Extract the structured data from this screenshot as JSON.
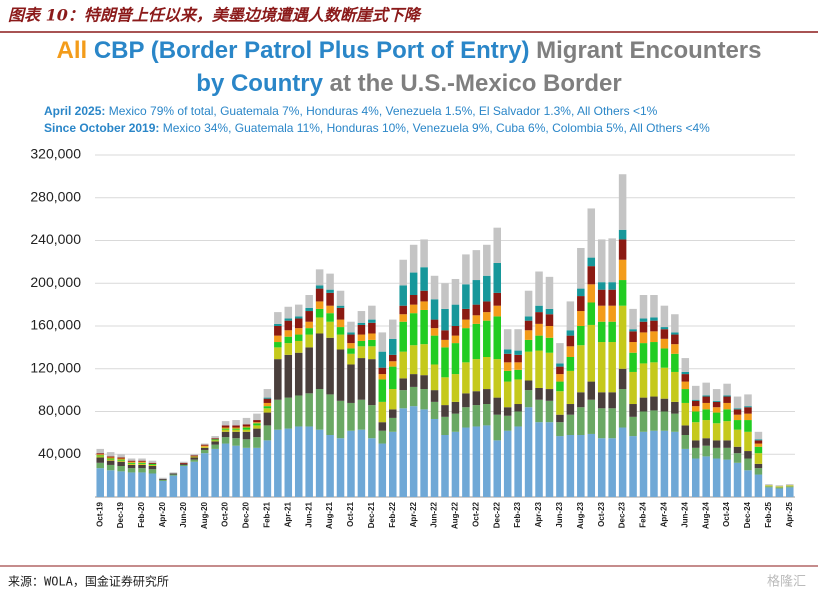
{
  "header": {
    "title": "图表 10：特朗普上任以来，美墨边境遭遇人数断崖式下降"
  },
  "chart_data": {
    "type": "stacked-bar",
    "title_line1": [
      "All",
      "CBP (Border Patrol Plus Port of Entry)",
      "Migrant Encounters"
    ],
    "title_line2": [
      "by Country",
      "at the U.S.-Mexico Border"
    ],
    "title_colors": [
      "#f39c1a",
      "#2a86c8",
      "#7f7f7f"
    ],
    "notes": [
      {
        "label": "April 2025:",
        "text": "Mexico 79% of total, Guatemala 7%, Honduras 4%, Venezuela 1.5%, El Salvador 1.3%, All Others <1%"
      },
      {
        "label": "Since October 2019:",
        "text": "Mexico 34%, Guatemala 11%, Honduras 10%, Venezuela 9%, Cuba 6%, Colombia 5%, All Others <4%"
      }
    ],
    "categories": [
      "Oct-19",
      null,
      "Dec-19",
      null,
      "Feb-20",
      null,
      "Apr-20",
      null,
      "Jun-20",
      null,
      "Aug-20",
      null,
      "Oct-20",
      null,
      "Dec-20",
      null,
      "Feb-21",
      null,
      "Apr-21",
      null,
      "Jun-21",
      null,
      "Aug-21",
      null,
      "Oct-21",
      null,
      "Dec-21",
      null,
      "Feb-22",
      null,
      "Apr-22",
      null,
      "Jun-22",
      null,
      "Aug-22",
      null,
      "Oct-22",
      null,
      "Dec-22",
      null,
      "Feb-23",
      null,
      "Apr-23",
      null,
      "Jun-23",
      null,
      "Aug-23",
      null,
      "Oct-23",
      null,
      "Dec-23",
      null,
      "Feb-24",
      null,
      "Apr-24",
      null,
      "Jun-24",
      null,
      "Aug-24",
      null,
      "Oct-24",
      null,
      "Dec-24",
      null,
      "Feb-25",
      null,
      "Apr-25"
    ],
    "series": [
      {
        "color": "#6fa8d6",
        "values": [
          27000,
          25000,
          24000,
          23000,
          23000,
          22000,
          15000,
          20000,
          29000,
          33000,
          41000,
          45000,
          50000,
          48000,
          46000,
          46000,
          53000,
          63000,
          64000,
          66000,
          66000,
          63000,
          58000,
          55000,
          62000,
          63000,
          55000,
          50000,
          61000,
          83000,
          85000,
          82000,
          73000,
          58000,
          61000,
          65000,
          66000,
          67000,
          53000,
          62000,
          66000,
          84000,
          70000,
          70000,
          57000,
          58000,
          58000,
          59000,
          55000,
          55000,
          65000,
          57000,
          61000,
          62000,
          62000,
          61000,
          45000,
          36000,
          38000,
          36000,
          35000,
          32000,
          25000,
          21000,
          9000,
          8000,
          9000
        ]
      },
      {
        "color": "#6aa864",
        "values": [
          5000,
          5000,
          5000,
          4000,
          4000,
          4000,
          1000,
          1000,
          1000,
          2000,
          3000,
          4000,
          6000,
          7000,
          8000,
          10000,
          14000,
          28000,
          29000,
          29000,
          31000,
          38000,
          38000,
          35000,
          26000,
          28000,
          31000,
          12000,
          13000,
          17000,
          18000,
          19000,
          16000,
          17000,
          17000,
          19000,
          20000,
          20000,
          24000,
          14000,
          14000,
          16000,
          21000,
          20000,
          13000,
          19000,
          26000,
          32000,
          28000,
          28000,
          36000,
          18000,
          19000,
          19000,
          18000,
          17000,
          13000,
          10000,
          10000,
          10000,
          11000,
          9000,
          11000,
          6000,
          1000,
          1000,
          1000
        ]
      },
      {
        "color": "#4a3f3c",
        "values": [
          5000,
          4000,
          4000,
          3000,
          3000,
          3000,
          1000,
          1000,
          1000,
          2000,
          2000,
          3000,
          5000,
          6000,
          7000,
          8000,
          12000,
          38000,
          40000,
          40000,
          43000,
          52000,
          53000,
          48000,
          36000,
          39000,
          43000,
          8000,
          8000,
          11000,
          12000,
          13000,
          11000,
          11000,
          11000,
          13000,
          13000,
          14000,
          16000,
          8000,
          7000,
          9000,
          11000,
          11000,
          7000,
          10000,
          14000,
          17000,
          15000,
          15000,
          19000,
          12000,
          13000,
          13000,
          12000,
          11000,
          9000,
          7000,
          7000,
          7000,
          7000,
          6000,
          7000,
          4000,
          0,
          0,
          0
        ]
      },
      {
        "color": "#c5c91c",
        "values": [
          1000,
          1000,
          1000,
          1000,
          1000,
          1000,
          0,
          0,
          0,
          1000,
          1000,
          1000,
          2000,
          2000,
          2000,
          3000,
          4000,
          11000,
          11000,
          11000,
          12000,
          15000,
          15000,
          14000,
          10000,
          11000,
          12000,
          19000,
          19000,
          25000,
          27000,
          29000,
          24000,
          26000,
          26000,
          29000,
          30000,
          30000,
          36000,
          24000,
          23000,
          27000,
          35000,
          34000,
          22000,
          31000,
          44000,
          53000,
          47000,
          47000,
          59000,
          30000,
          32000,
          32000,
          29000,
          28000,
          21000,
          17000,
          17000,
          16000,
          18000,
          16000,
          18000,
          10000,
          1000,
          1000,
          1000
        ]
      },
      {
        "color": "#22cc22",
        "values": [
          1000,
          1000,
          1000,
          1000,
          1000,
          1000,
          0,
          0,
          0,
          0,
          0,
          1000,
          1000,
          1000,
          2000,
          2000,
          2000,
          5000,
          6000,
          6000,
          6000,
          8000,
          8000,
          7000,
          5000,
          5000,
          6000,
          21000,
          21000,
          28000,
          30000,
          32000,
          27000,
          28000,
          29000,
          32000,
          33000,
          34000,
          40000,
          10000,
          9000,
          11000,
          14000,
          14000,
          9000,
          13000,
          18000,
          21000,
          19000,
          19000,
          24000,
          18000,
          19000,
          19000,
          18000,
          17000,
          13000,
          10000,
          10000,
          10000,
          11000,
          9000,
          11000,
          6000,
          0,
          0,
          0
        ]
      },
      {
        "color": "#f39c1a",
        "values": [
          1000,
          1000,
          1000,
          1000,
          1000,
          0,
          0,
          0,
          0,
          0,
          1000,
          0,
          1000,
          1000,
          1000,
          1000,
          3000,
          6000,
          6000,
          6000,
          6000,
          7000,
          7000,
          7000,
          5000,
          6000,
          6000,
          5000,
          5000,
          7000,
          8000,
          8000,
          7000,
          7000,
          7000,
          8000,
          8000,
          8000,
          10000,
          8000,
          7000,
          9000,
          11000,
          11000,
          7000,
          10000,
          14000,
          17000,
          15000,
          15000,
          19000,
          10000,
          10000,
          10000,
          9000,
          9000,
          7000,
          5000,
          6000,
          5000,
          6000,
          5000,
          6000,
          3000,
          0,
          0,
          0
        ]
      },
      {
        "color": "#8b1a12",
        "values": [
          1000,
          1000,
          1000,
          1000,
          1000,
          1000,
          0,
          0,
          1000,
          1000,
          1000,
          1000,
          2000,
          2000,
          2000,
          2000,
          4000,
          9000,
          9000,
          9000,
          10000,
          12000,
          12000,
          11000,
          8000,
          9000,
          10000,
          6000,
          6000,
          8000,
          9000,
          10000,
          8000,
          9000,
          9000,
          10000,
          10000,
          10000,
          12000,
          8000,
          7000,
          9000,
          11000,
          11000,
          7000,
          10000,
          14000,
          17000,
          15000,
          15000,
          19000,
          10000,
          10000,
          10000,
          9000,
          9000,
          7000,
          5000,
          6000,
          5000,
          6000,
          5000,
          6000,
          3000,
          0,
          0,
          0
        ]
      },
      {
        "color": "#17979a",
        "values": [
          0,
          0,
          0,
          0,
          0,
          0,
          0,
          0,
          0,
          0,
          0,
          0,
          0,
          0,
          0,
          0,
          1000,
          2000,
          2000,
          2000,
          3000,
          3000,
          3000,
          2000,
          2000,
          2000,
          3000,
          15000,
          15000,
          19000,
          21000,
          22000,
          19000,
          20000,
          20000,
          23000,
          23000,
          24000,
          28000,
          4000,
          4000,
          4000,
          6000,
          5000,
          3000,
          5000,
          7000,
          8000,
          7000,
          7000,
          9000,
          2000,
          3000,
          3000,
          2000,
          2000,
          2000,
          1000,
          1000,
          1000,
          1000,
          1000,
          1000,
          1000,
          0,
          0,
          0
        ]
      },
      {
        "color": "#c4c4c4",
        "values": [
          4000,
          4000,
          3000,
          2000,
          2000,
          2000,
          1000,
          1000,
          1000,
          1000,
          1000,
          2000,
          4000,
          5000,
          6000,
          6000,
          8000,
          11000,
          11000,
          11000,
          12000,
          15000,
          15000,
          14000,
          10000,
          11000,
          13000,
          18000,
          18000,
          24000,
          26000,
          26000,
          22000,
          24000,
          24000,
          28000,
          28000,
          29000,
          33000,
          19000,
          20000,
          24000,
          32000,
          30000,
          19000,
          27000,
          38000,
          46000,
          40000,
          41000,
          52000,
          19000,
          22000,
          21000,
          20000,
          17000,
          13000,
          13000,
          12000,
          11000,
          11000,
          11000,
          11000,
          7000,
          1000,
          1000,
          1000
        ]
      }
    ],
    "ylim": [
      0,
      320000
    ],
    "yticks": [
      {
        "value": 40000,
        "label": "40,000"
      },
      {
        "value": 80000,
        "label": "80,000"
      },
      {
        "value": 120000,
        "label": "120,000"
      },
      {
        "value": 160000,
        "label": "160,000"
      },
      {
        "value": 200000,
        "label": "200,000"
      },
      {
        "value": 240000,
        "label": "240,000"
      },
      {
        "value": 280000,
        "label": "280,000"
      },
      {
        "value": 320000,
        "label": "320,000"
      }
    ],
    "grid": true
  },
  "footer": {
    "source": "来源：WOLA，国金证券研究所",
    "watermark": "格隆汇"
  }
}
